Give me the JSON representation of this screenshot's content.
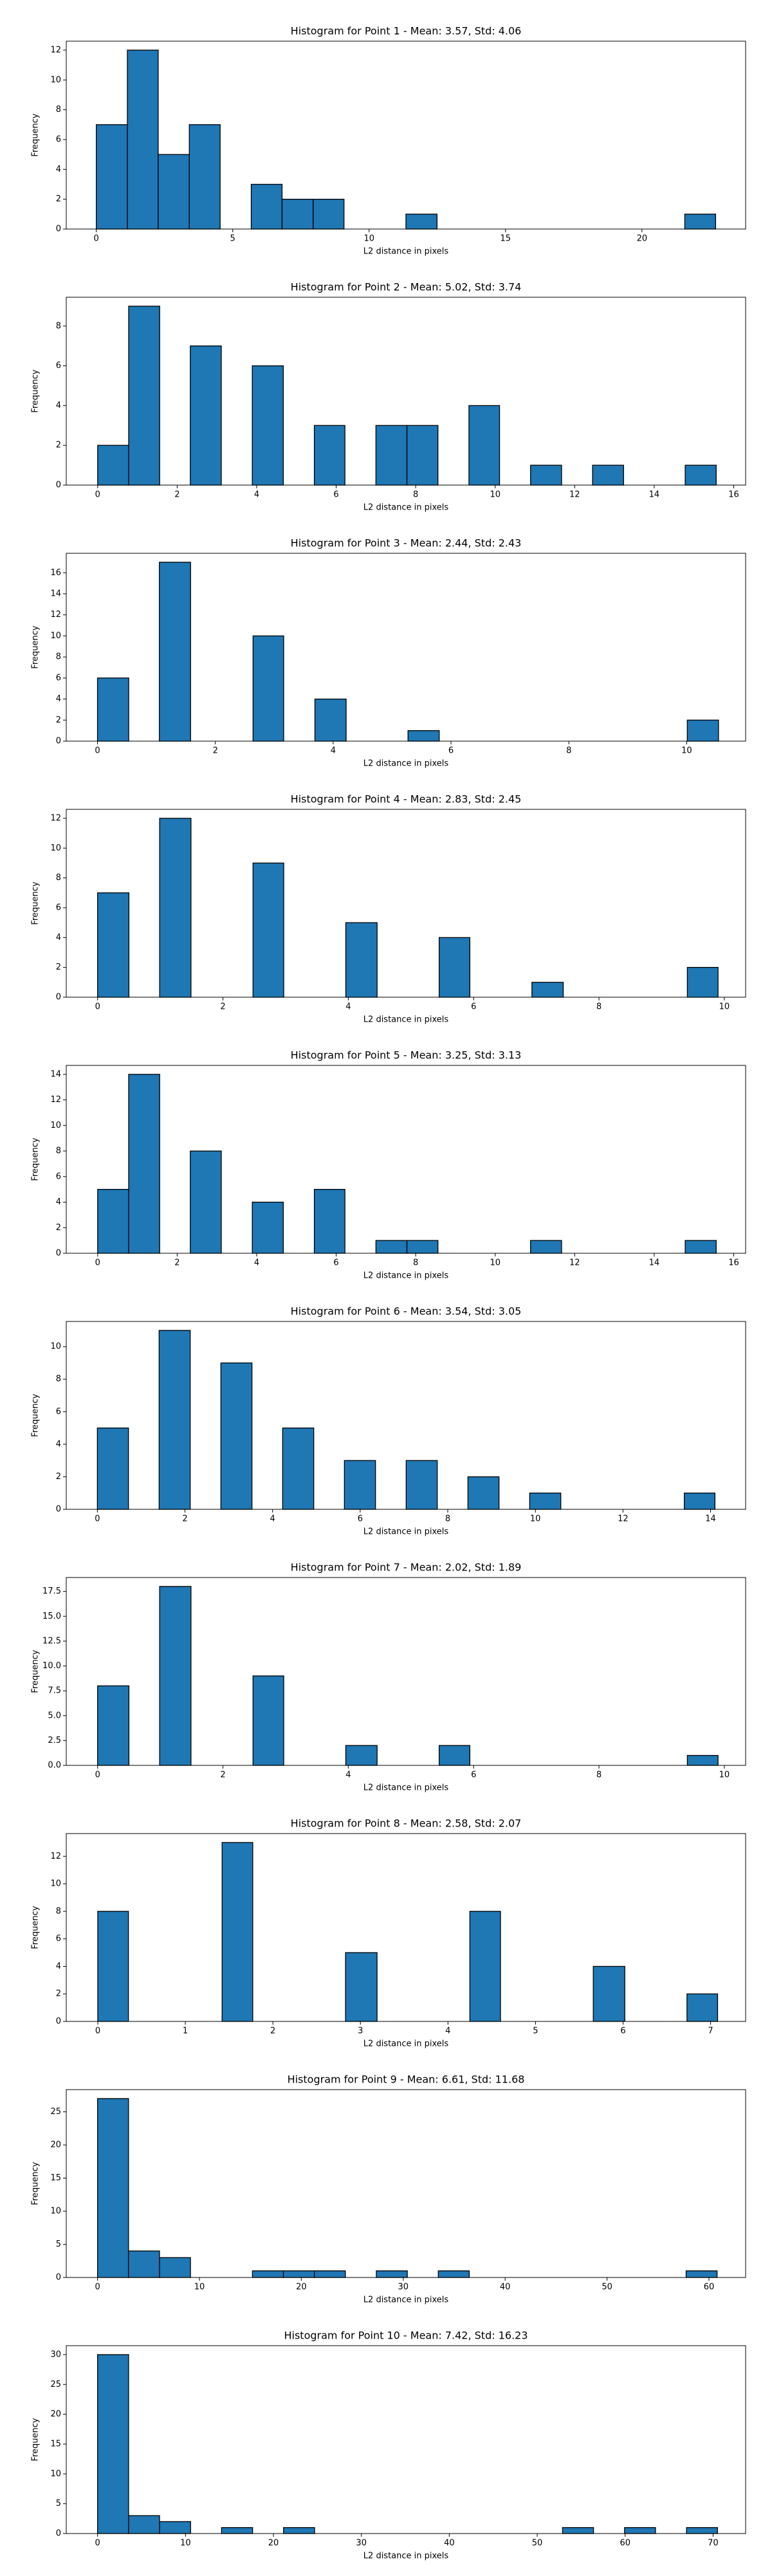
{
  "chart_data": [
    {
      "type": "histogram",
      "title": "Histogram for Point 1 - Mean: 3.57, Std: 4.06",
      "xlabel": "L2 distance in pixels",
      "ylabel": "Frequency",
      "color": "#1f77b4",
      "edgecolor": "#000000",
      "bins": [
        0,
        1.14,
        2.27,
        3.41,
        4.54,
        5.68,
        6.81,
        7.95,
        9.08,
        10.22,
        11.35,
        12.49,
        13.62,
        14.76,
        15.89,
        17.03,
        18.16,
        19.3,
        20.43,
        21.57,
        22.7
      ],
      "counts": [
        7,
        12,
        5,
        7,
        0,
        3,
        2,
        2,
        0,
        0,
        1,
        0,
        0,
        0,
        0,
        0,
        0,
        0,
        0,
        1
      ],
      "xlim": [
        -1.1,
        23.8
      ],
      "xticks": [
        0,
        5,
        10,
        15,
        20
      ],
      "ylim": [
        0,
        12.6
      ],
      "yticks": [
        0,
        2,
        4,
        6,
        8,
        10,
        12
      ]
    },
    {
      "type": "histogram",
      "title": "Histogram for Point 2 - Mean: 5.02, Std: 3.74",
      "xlabel": "L2 distance in pixels",
      "ylabel": "Frequency",
      "color": "#1f77b4",
      "edgecolor": "#000000",
      "bins": [
        0,
        0.78,
        1.56,
        2.33,
        3.11,
        3.89,
        4.67,
        5.45,
        6.22,
        7.0,
        7.78,
        8.56,
        9.34,
        10.11,
        10.89,
        11.67,
        12.45,
        13.23,
        14.0,
        14.78,
        15.56
      ],
      "counts": [
        2,
        9,
        0,
        7,
        0,
        6,
        0,
        3,
        0,
        3,
        3,
        0,
        4,
        0,
        1,
        0,
        1,
        0,
        0,
        1
      ],
      "xlim": [
        -0.79,
        16.3
      ],
      "xticks": [
        0,
        2,
        4,
        6,
        8,
        10,
        12,
        14,
        16
      ],
      "ylim": [
        0,
        9.45
      ],
      "yticks": [
        0,
        2,
        4,
        6,
        8
      ]
    },
    {
      "type": "histogram",
      "title": "Histogram for Point 3 - Mean: 2.44, Std: 2.43",
      "xlabel": "L2 distance in pixels",
      "ylabel": "Frequency",
      "color": "#1f77b4",
      "edgecolor": "#000000",
      "bins": [
        0,
        0.53,
        1.05,
        1.58,
        2.11,
        2.64,
        3.16,
        3.69,
        4.22,
        4.74,
        5.27,
        5.8,
        6.32,
        6.85,
        7.38,
        7.91,
        8.43,
        8.96,
        9.49,
        10.01,
        10.54
      ],
      "counts": [
        6,
        0,
        17,
        0,
        0,
        10,
        0,
        4,
        0,
        0,
        1,
        0,
        0,
        0,
        0,
        0,
        0,
        0,
        0,
        2
      ],
      "xlim": [
        -0.53,
        11.0
      ],
      "xticks": [
        0,
        2,
        4,
        6,
        8,
        10
      ],
      "ylim": [
        0,
        17.85
      ],
      "yticks": [
        0,
        2,
        4,
        6,
        8,
        10,
        12,
        14,
        16
      ]
    },
    {
      "type": "histogram",
      "title": "Histogram for Point 4 - Mean: 2.83, Std: 2.45",
      "xlabel": "L2 distance in pixels",
      "ylabel": "Frequency",
      "color": "#1f77b4",
      "edgecolor": "#000000",
      "bins": [
        0,
        0.5,
        0.99,
        1.49,
        1.98,
        2.48,
        2.97,
        3.47,
        3.96,
        4.46,
        4.95,
        5.45,
        5.94,
        6.44,
        6.93,
        7.43,
        7.92,
        8.42,
        8.91,
        9.41,
        9.9
      ],
      "counts": [
        7,
        0,
        12,
        0,
        0,
        9,
        0,
        0,
        5,
        0,
        0,
        4,
        0,
        0,
        1,
        0,
        0,
        0,
        0,
        2
      ],
      "xlim": [
        -0.5,
        10.34
      ],
      "xticks": [
        0,
        2,
        4,
        6,
        8,
        10
      ],
      "ylim": [
        0,
        12.6
      ],
      "yticks": [
        0,
        2,
        4,
        6,
        8,
        10,
        12
      ]
    },
    {
      "type": "histogram",
      "title": "Histogram for Point 5 - Mean: 3.25, Std: 3.13",
      "xlabel": "L2 distance in pixels",
      "ylabel": "Frequency",
      "color": "#1f77b4",
      "edgecolor": "#000000",
      "bins": [
        0,
        0.78,
        1.56,
        2.33,
        3.11,
        3.89,
        4.67,
        5.45,
        6.22,
        7.0,
        7.78,
        8.56,
        9.34,
        10.11,
        10.89,
        11.67,
        12.45,
        13.23,
        14.0,
        14.78,
        15.56
      ],
      "counts": [
        5,
        14,
        0,
        8,
        0,
        4,
        0,
        5,
        0,
        1,
        1,
        0,
        0,
        0,
        1,
        0,
        0,
        0,
        0,
        1
      ],
      "xlim": [
        -0.79,
        16.3
      ],
      "xticks": [
        0,
        2,
        4,
        6,
        8,
        10,
        12,
        14,
        16
      ],
      "ylim": [
        0,
        14.7
      ],
      "yticks": [
        0,
        2,
        4,
        6,
        8,
        10,
        12,
        14
      ]
    },
    {
      "type": "histogram",
      "title": "Histogram for Point 6 - Mean: 3.54, Std: 3.05",
      "xlabel": "L2 distance in pixels",
      "ylabel": "Frequency",
      "color": "#1f77b4",
      "edgecolor": "#000000",
      "bins": [
        0,
        0.71,
        1.41,
        2.12,
        2.82,
        3.53,
        4.23,
        4.94,
        5.64,
        6.35,
        7.05,
        7.76,
        8.46,
        9.17,
        9.87,
        10.58,
        11.28,
        11.99,
        12.69,
        13.4,
        14.1
      ],
      "counts": [
        5,
        0,
        11,
        0,
        9,
        0,
        5,
        0,
        3,
        0,
        3,
        0,
        2,
        0,
        1,
        0,
        0,
        0,
        0,
        1
      ],
      "xlim": [
        -0.71,
        14.8
      ],
      "xticks": [
        0,
        2,
        4,
        6,
        8,
        10,
        12,
        14
      ],
      "ylim": [
        0,
        11.55
      ],
      "yticks": [
        0,
        2,
        4,
        6,
        8,
        10
      ]
    },
    {
      "type": "histogram",
      "title": "Histogram for Point 7 - Mean: 2.02, Std: 1.89",
      "xlabel": "L2 distance in pixels",
      "ylabel": "Frequency",
      "color": "#1f77b4",
      "edgecolor": "#000000",
      "bins": [
        0,
        0.5,
        0.99,
        1.49,
        1.98,
        2.48,
        2.97,
        3.47,
        3.96,
        4.46,
        4.95,
        5.45,
        5.94,
        6.44,
        6.93,
        7.43,
        7.92,
        8.42,
        8.91,
        9.41,
        9.9
      ],
      "counts": [
        8,
        0,
        18,
        0,
        0,
        9,
        0,
        0,
        2,
        0,
        0,
        2,
        0,
        0,
        0,
        0,
        0,
        0,
        0,
        1
      ],
      "xlim": [
        -0.5,
        10.34
      ],
      "xticks": [
        0,
        2,
        4,
        6,
        8,
        10
      ],
      "ylim": [
        0,
        18.9
      ],
      "yticks": [
        {
          "value": 0,
          "label": "0.0"
        },
        2.5,
        {
          "value": 5,
          "label": "5.0"
        },
        7.5,
        {
          "value": 10,
          "label": "10.0"
        },
        12.5,
        {
          "value": 15,
          "label": "15.0"
        },
        17.5
      ]
    },
    {
      "type": "histogram",
      "title": "Histogram for Point 8 - Mean: 2.58, Std: 2.07",
      "xlabel": "L2 distance in pixels",
      "ylabel": "Frequency",
      "color": "#1f77b4",
      "edgecolor": "#000000",
      "bins": [
        0,
        0.35,
        0.71,
        1.06,
        1.42,
        1.77,
        2.12,
        2.48,
        2.83,
        3.19,
        3.54,
        3.89,
        4.25,
        4.6,
        4.96,
        5.31,
        5.66,
        6.02,
        6.37,
        6.73,
        7.08
      ],
      "counts": [
        8,
        0,
        0,
        0,
        13,
        0,
        0,
        0,
        5,
        0,
        0,
        0,
        8,
        0,
        0,
        0,
        4,
        0,
        0,
        2
      ],
      "xlim": [
        -0.36,
        7.4
      ],
      "xticks": [
        0,
        1,
        2,
        3,
        4,
        5,
        6,
        7
      ],
      "ylim": [
        0,
        13.65
      ],
      "yticks": [
        0,
        2,
        4,
        6,
        8,
        10,
        12
      ]
    },
    {
      "type": "histogram",
      "title": "Histogram for Point 9 - Mean: 6.61, Std: 11.68",
      "xlabel": "L2 distance in pixels",
      "ylabel": "Frequency",
      "color": "#1f77b4",
      "edgecolor": "#000000",
      "bins": [
        0,
        3.04,
        6.08,
        9.12,
        12.16,
        15.2,
        18.24,
        21.28,
        24.32,
        27.36,
        30.4,
        33.44,
        36.48,
        39.52,
        42.56,
        45.6,
        48.64,
        51.68,
        54.72,
        57.76,
        60.8
      ],
      "counts": [
        27,
        4,
        3,
        0,
        0,
        1,
        1,
        1,
        0,
        1,
        0,
        1,
        0,
        0,
        0,
        0,
        0,
        0,
        0,
        1
      ],
      "xlim": [
        -3.07,
        63.6
      ],
      "xticks": [
        0,
        10,
        20,
        30,
        40,
        50,
        60
      ],
      "ylim": [
        0,
        28.35
      ],
      "yticks": [
        0,
        5,
        10,
        15,
        20,
        25
      ]
    },
    {
      "type": "histogram",
      "title": "Histogram for Point 10 - Mean: 7.42, Std: 16.23",
      "xlabel": "L2 distance in pixels",
      "ylabel": "Frequency",
      "color": "#1f77b4",
      "edgecolor": "#000000",
      "bins": [
        0,
        3.53,
        7.05,
        10.58,
        14.1,
        17.63,
        21.15,
        24.68,
        28.2,
        31.73,
        35.25,
        38.78,
        42.3,
        45.83,
        49.35,
        52.88,
        56.4,
        59.93,
        63.45,
        66.98,
        70.5
      ],
      "counts": [
        30,
        3,
        2,
        0,
        1,
        0,
        1,
        0,
        0,
        0,
        0,
        0,
        0,
        0,
        0,
        1,
        0,
        1,
        0,
        1
      ],
      "xlim": [
        -3.56,
        73.7
      ],
      "xticks": [
        0,
        10,
        20,
        30,
        40,
        50,
        60,
        70
      ],
      "ylim": [
        0,
        31.5
      ],
      "yticks": [
        0,
        5,
        10,
        15,
        20,
        25,
        30
      ]
    }
  ]
}
